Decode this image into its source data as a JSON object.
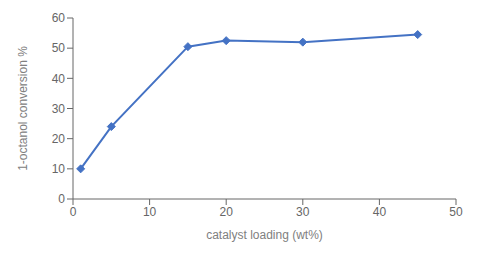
{
  "chart_data": {
    "type": "line",
    "x": [
      1,
      5,
      15,
      20,
      30,
      45
    ],
    "values": [
      10,
      24,
      50.5,
      52.5,
      52,
      54.5
    ],
    "color": "#4472C4",
    "marker": "diamond",
    "xlabel": "catalyst loading (wt%)",
    "ylabel": "1-octanol conversion %",
    "xlim": [
      0,
      50
    ],
    "ylim": [
      0,
      60
    ],
    "xticks": [
      0,
      10,
      20,
      30,
      40,
      50
    ],
    "yticks": [
      0,
      10,
      20,
      30,
      40,
      50,
      60
    ],
    "grid": false
  }
}
